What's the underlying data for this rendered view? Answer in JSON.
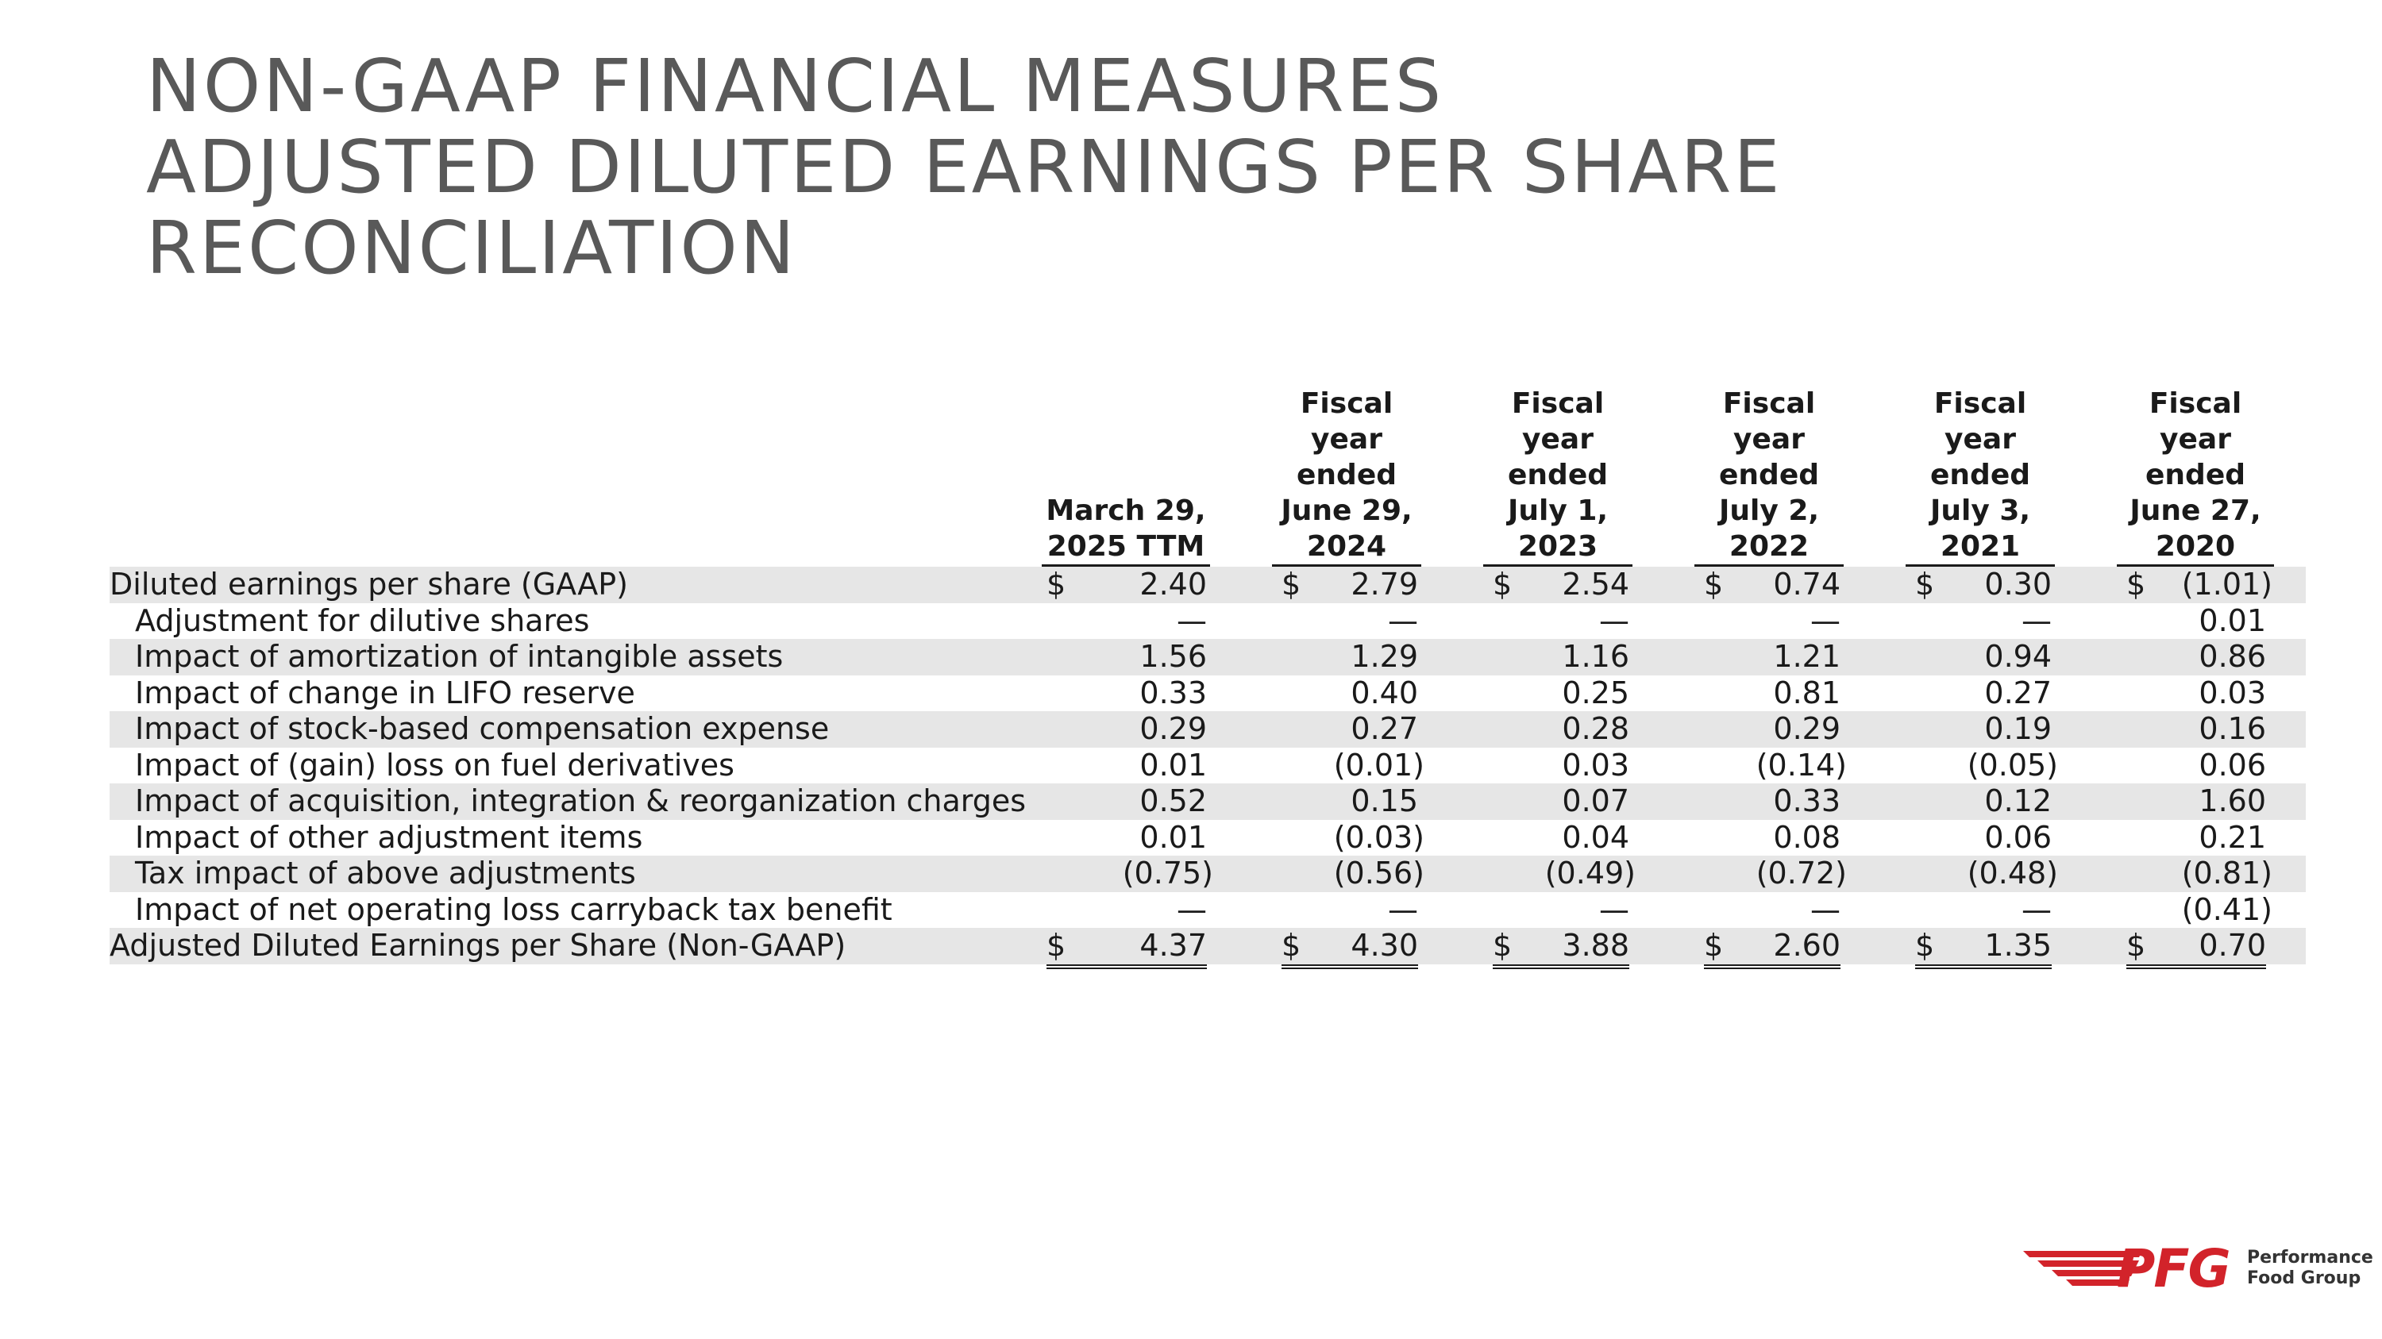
{
  "title": {
    "line1": "NON-GAAP FINANCIAL MEASURES",
    "line2": "ADJUSTED DILUTED EARNINGS PER SHARE",
    "line3": "RECONCILIATION"
  },
  "table": {
    "columns": [
      "March 29,\n2025 TTM",
      "Fiscal\nyear\nended\nJune 29,\n2024",
      "Fiscal\nyear\nended\nJuly 1,\n2023",
      "Fiscal\nyear\nended\nJuly 2,\n2022",
      "Fiscal\nyear\nended\nJuly 3,\n2021",
      "Fiscal year\nended\nJune 27,\n2020"
    ],
    "currency_symbol": "$",
    "rows": [
      {
        "label": "Diluted earnings per share (GAAP)",
        "values": [
          "2.40",
          "2.79",
          "2.54",
          "0.74",
          "0.30",
          "(1.01)"
        ]
      },
      {
        "label": "Adjustment for dilutive shares",
        "values": [
          "—",
          "—",
          "—",
          "—",
          "—",
          "0.01"
        ]
      },
      {
        "label": "Impact of amortization of intangible assets",
        "values": [
          "1.56",
          "1.29",
          "1.16",
          "1.21",
          "0.94",
          "0.86"
        ]
      },
      {
        "label": "Impact of change in LIFO reserve",
        "values": [
          "0.33",
          "0.40",
          "0.25",
          "0.81",
          "0.27",
          "0.03"
        ]
      },
      {
        "label": "Impact of stock-based compensation expense",
        "values": [
          "0.29",
          "0.27",
          "0.28",
          "0.29",
          "0.19",
          "0.16"
        ]
      },
      {
        "label": "Impact of (gain) loss on fuel derivatives",
        "values": [
          "0.01",
          "(0.01)",
          "0.03",
          "(0.14)",
          "(0.05)",
          "0.06"
        ]
      },
      {
        "label": "Impact of acquisition, integration & reorganization charges",
        "values": [
          "0.52",
          "0.15",
          "0.07",
          "0.33",
          "0.12",
          "1.60"
        ]
      },
      {
        "label": "Impact of other adjustment items",
        "values": [
          "0.01",
          "(0.03)",
          "0.04",
          "0.08",
          "0.06",
          "0.21"
        ]
      },
      {
        "label": "Tax impact of above adjustments",
        "values": [
          "(0.75)",
          "(0.56)",
          "(0.49)",
          "(0.72)",
          "(0.48)",
          "(0.81)"
        ]
      },
      {
        "label": "Impact of net operating loss carryback tax benefit",
        "values": [
          "—",
          "—",
          "—",
          "—",
          "—",
          "(0.41)"
        ]
      },
      {
        "label": "Adjusted Diluted Earnings per Share (Non-GAAP)",
        "values": [
          "4.37",
          "4.30",
          "3.88",
          "2.60",
          "1.35",
          "0.70"
        ]
      }
    ]
  },
  "logo": {
    "mark": "PFG",
    "line1": "Performance",
    "line2": "Food Group",
    "color": "#d2232a"
  }
}
